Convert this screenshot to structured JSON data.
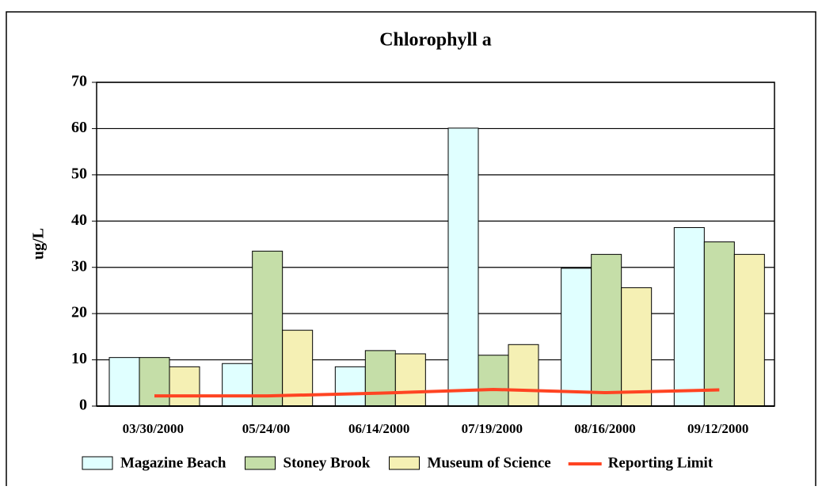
{
  "chart_data": {
    "type": "bar",
    "title": "Chlorophyll a",
    "ylabel": "ug/L",
    "categories": [
      "03/30/2000",
      "05/24/00",
      "06/14/2000",
      "07/19/2000",
      "08/16/2000",
      "09/12/2000"
    ],
    "series": [
      {
        "name": "Magazine Beach",
        "color": "#e0ffff",
        "values": [
          10.5,
          9.2,
          8.5,
          60.1,
          29.8,
          38.6
        ]
      },
      {
        "name": "Stoney Brook",
        "color": "#c5dea8",
        "values": [
          10.5,
          33.5,
          12,
          11,
          32.8,
          35.5
        ]
      },
      {
        "name": "Museum of Science",
        "color": "#f5f0b4",
        "values": [
          8.5,
          16.4,
          11.3,
          13.3,
          25.6,
          32.8
        ]
      },
      {
        "name": "Reporting Limit",
        "color": "#ff4422",
        "type": "line",
        "values": [
          2.2,
          2.2,
          2.8,
          3.6,
          2.9,
          3.5
        ]
      }
    ],
    "ylim": [
      0,
      70
    ],
    "yticks": [
      0,
      10,
      20,
      30,
      40,
      50,
      60,
      70
    ],
    "grid": true,
    "legend": "bottom"
  }
}
